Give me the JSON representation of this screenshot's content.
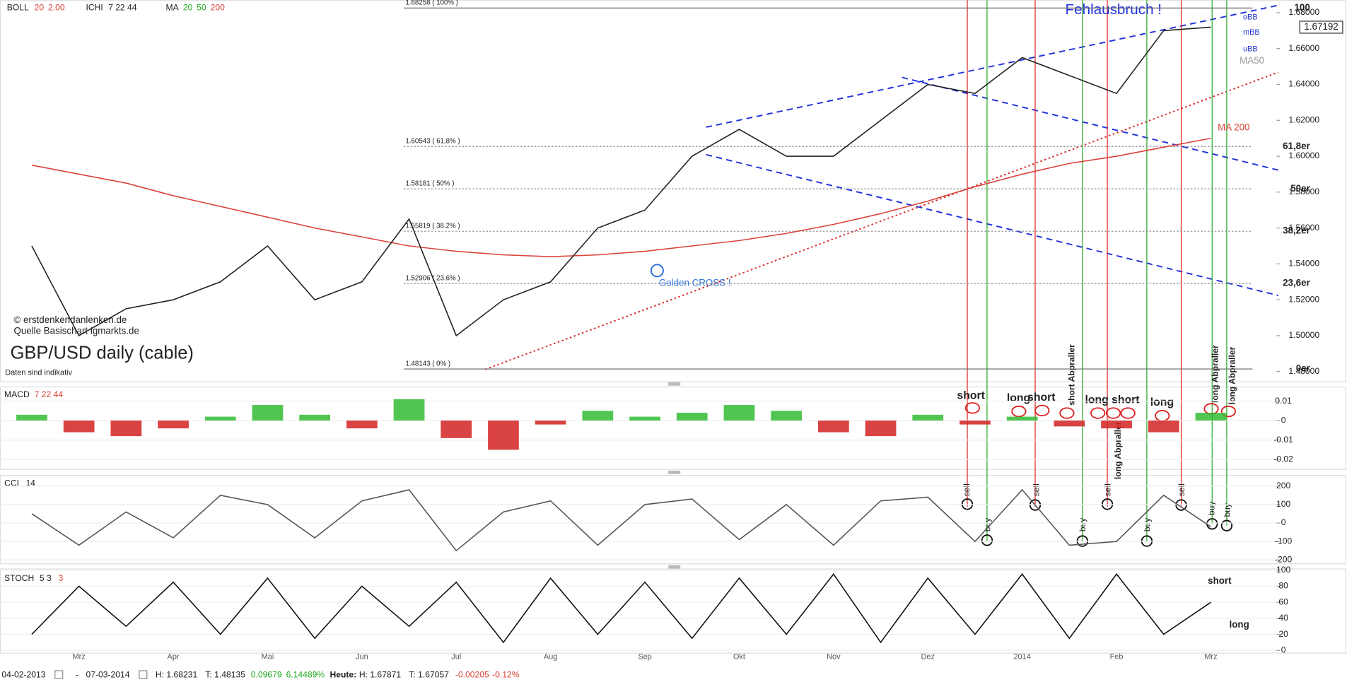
{
  "header": {
    "boll": "BOLL",
    "boll_params": [
      "20",
      "2.00"
    ],
    "ichi": "ICHI",
    "ichi_params": "7 22 44",
    "ma": "MA",
    "ma_params": [
      "20",
      "50",
      "200"
    ]
  },
  "chart_data": [
    {
      "type": "line",
      "color": "#222222",
      "values": [
        1.55,
        1.5,
        1.515,
        1.52,
        1.53,
        1.55,
        1.52,
        1.53,
        1.565,
        1.5,
        1.52,
        1.53,
        1.56,
        1.57,
        1.6,
        1.615,
        1.6,
        1.6,
        1.62,
        1.64,
        1.635,
        1.655,
        1.645,
        1.635,
        1.67,
        1.67192
      ],
      "series": [
        {
          "name": "MA 200",
          "color": "#d9433a",
          "values": [
            1.595,
            1.59,
            1.585,
            1.578,
            1.572,
            1.566,
            1.56,
            1.555,
            1.55,
            1.547,
            1.545,
            1.544,
            1.545,
            1.547,
            1.55,
            1.553,
            1.557,
            1.562,
            1.568,
            1.575,
            1.583,
            1.59,
            1.596,
            1.6,
            1.605,
            1.61
          ]
        }
      ],
      "ylim": [
        1.475,
        1.687
      ],
      "yticks": [
        {
          "value": 1.68,
          "label": "1.68000"
        },
        {
          "value": 1.66,
          "label": "1.66000"
        },
        {
          "value": 1.64,
          "label": "1.64000"
        },
        {
          "value": 1.62,
          "label": "1.62000"
        },
        {
          "value": 1.6,
          "label": "1.60000"
        },
        {
          "value": 1.58,
          "label": "1.58000"
        },
        {
          "value": 1.56,
          "label": "1.56000"
        },
        {
          "value": 1.54,
          "label": "1.54000"
        },
        {
          "value": 1.52,
          "label": "1.52000"
        },
        {
          "value": 1.5,
          "label": "1.50000"
        },
        {
          "value": 1.48,
          "label": "1.48000"
        }
      ],
      "fib_levels": [
        {
          "value": 1.68258,
          "label": "1.68258 ( 100% )",
          "tag": "100"
        },
        {
          "value": 1.60543,
          "label": "1.60543 ( 61,8% )",
          "tag": "61,8er"
        },
        {
          "value": 1.58181,
          "label": "1.58181 ( 50% )",
          "tag": "50er"
        },
        {
          "value": 1.55819,
          "label": "1.55819 ( 38.2% )",
          "tag": "38,2er"
        },
        {
          "value": 1.52906,
          "label": "1.52906 ( 23.6% )",
          "tag": "23,6er"
        },
        {
          "value": 1.48143,
          "label": "1.48143 ( 0% )",
          "tag": "0er"
        }
      ],
      "annotations": [
        "Fehlausbruch !",
        "Golden CROSS !",
        "oBB",
        "mBB",
        "uBB",
        "MA50",
        "© erstdenkendanlenken.de",
        "Quelle Basischart igmarkts.de",
        "GBP/USD daily (cable)",
        "Daten sind indikativ"
      ]
    },
    {
      "type": "bar",
      "title": "MACD",
      "subtitle": "7 22 44",
      "colors": {
        "positive": "#33bb33",
        "negative": "#d42222"
      },
      "values": [
        0.003,
        -0.006,
        -0.008,
        -0.004,
        0.002,
        0.008,
        0.003,
        -0.004,
        0.011,
        -0.009,
        -0.015,
        -0.002,
        0.005,
        0.002,
        0.004,
        0.008,
        0.005,
        -0.006,
        -0.008,
        0.003,
        -0.002,
        0.002,
        -0.003,
        -0.004,
        -0.006,
        0.004
      ],
      "ylim": [
        -0.0244,
        0.0175
      ],
      "yticks": [
        0.01,
        0,
        -0.01,
        -0.02
      ],
      "annotations": [
        "short",
        "long",
        "short",
        "short Abpraller",
        "long",
        "short",
        "long Abpraller",
        "long",
        "long Abpraller",
        "long Abpraller"
      ]
    },
    {
      "type": "line",
      "title": "CCI",
      "subtitle": "14",
      "color": "#555555",
      "values": [
        50,
        -120,
        60,
        -80,
        150,
        100,
        -80,
        120,
        180,
        -150,
        60,
        120,
        -120,
        100,
        130,
        -90,
        100,
        -120,
        120,
        140,
        -100,
        180,
        -120,
        -100,
        150,
        -20
      ],
      "ylim": [
        -214,
        251
      ],
      "yticks": [
        200,
        100,
        0,
        -100,
        -200
      ],
      "annotations": [
        "sell",
        "buy",
        "sell",
        "buy",
        "sell",
        "buy",
        "sell",
        "buy",
        "buy"
      ]
    },
    {
      "type": "line",
      "title": "STOCH",
      "subtitle": [
        "5 3",
        "3"
      ],
      "color": "#111111",
      "categories": [
        null,
        "Mrz",
        null,
        "Apr",
        null,
        "Mai",
        null,
        "Jun",
        null,
        "Jul",
        null,
        "Aug",
        null,
        "Sep",
        null,
        "Okt",
        null,
        "Nov",
        null,
        "Dez",
        null,
        "2014",
        null,
        "Feb",
        null,
        "Mrz"
      ],
      "values": [
        20,
        80,
        30,
        85,
        20,
        90,
        15,
        80,
        30,
        85,
        10,
        90,
        20,
        85,
        15,
        90,
        20,
        95,
        10,
        90,
        20,
        95,
        15,
        95,
        20,
        60
      ],
      "ylim": [
        -5,
        102
      ],
      "yticks": [
        100,
        80,
        60,
        40,
        20,
        0
      ],
      "annotations": [
        "short",
        "long"
      ]
    }
  ],
  "footer": {
    "from": "04-02-2013",
    "sep": "-",
    "to": "07-03-2014",
    "high": "H: 1.68231",
    "low": "T: 1.48135",
    "change": "0.09679",
    "change_pct": "6.14489%",
    "today": "Heute:",
    "today_high": "H: 1.67871",
    "today_low": "T: 1.67057",
    "today_change": "-0.00205",
    "today_change_pct": "-0.12%"
  }
}
